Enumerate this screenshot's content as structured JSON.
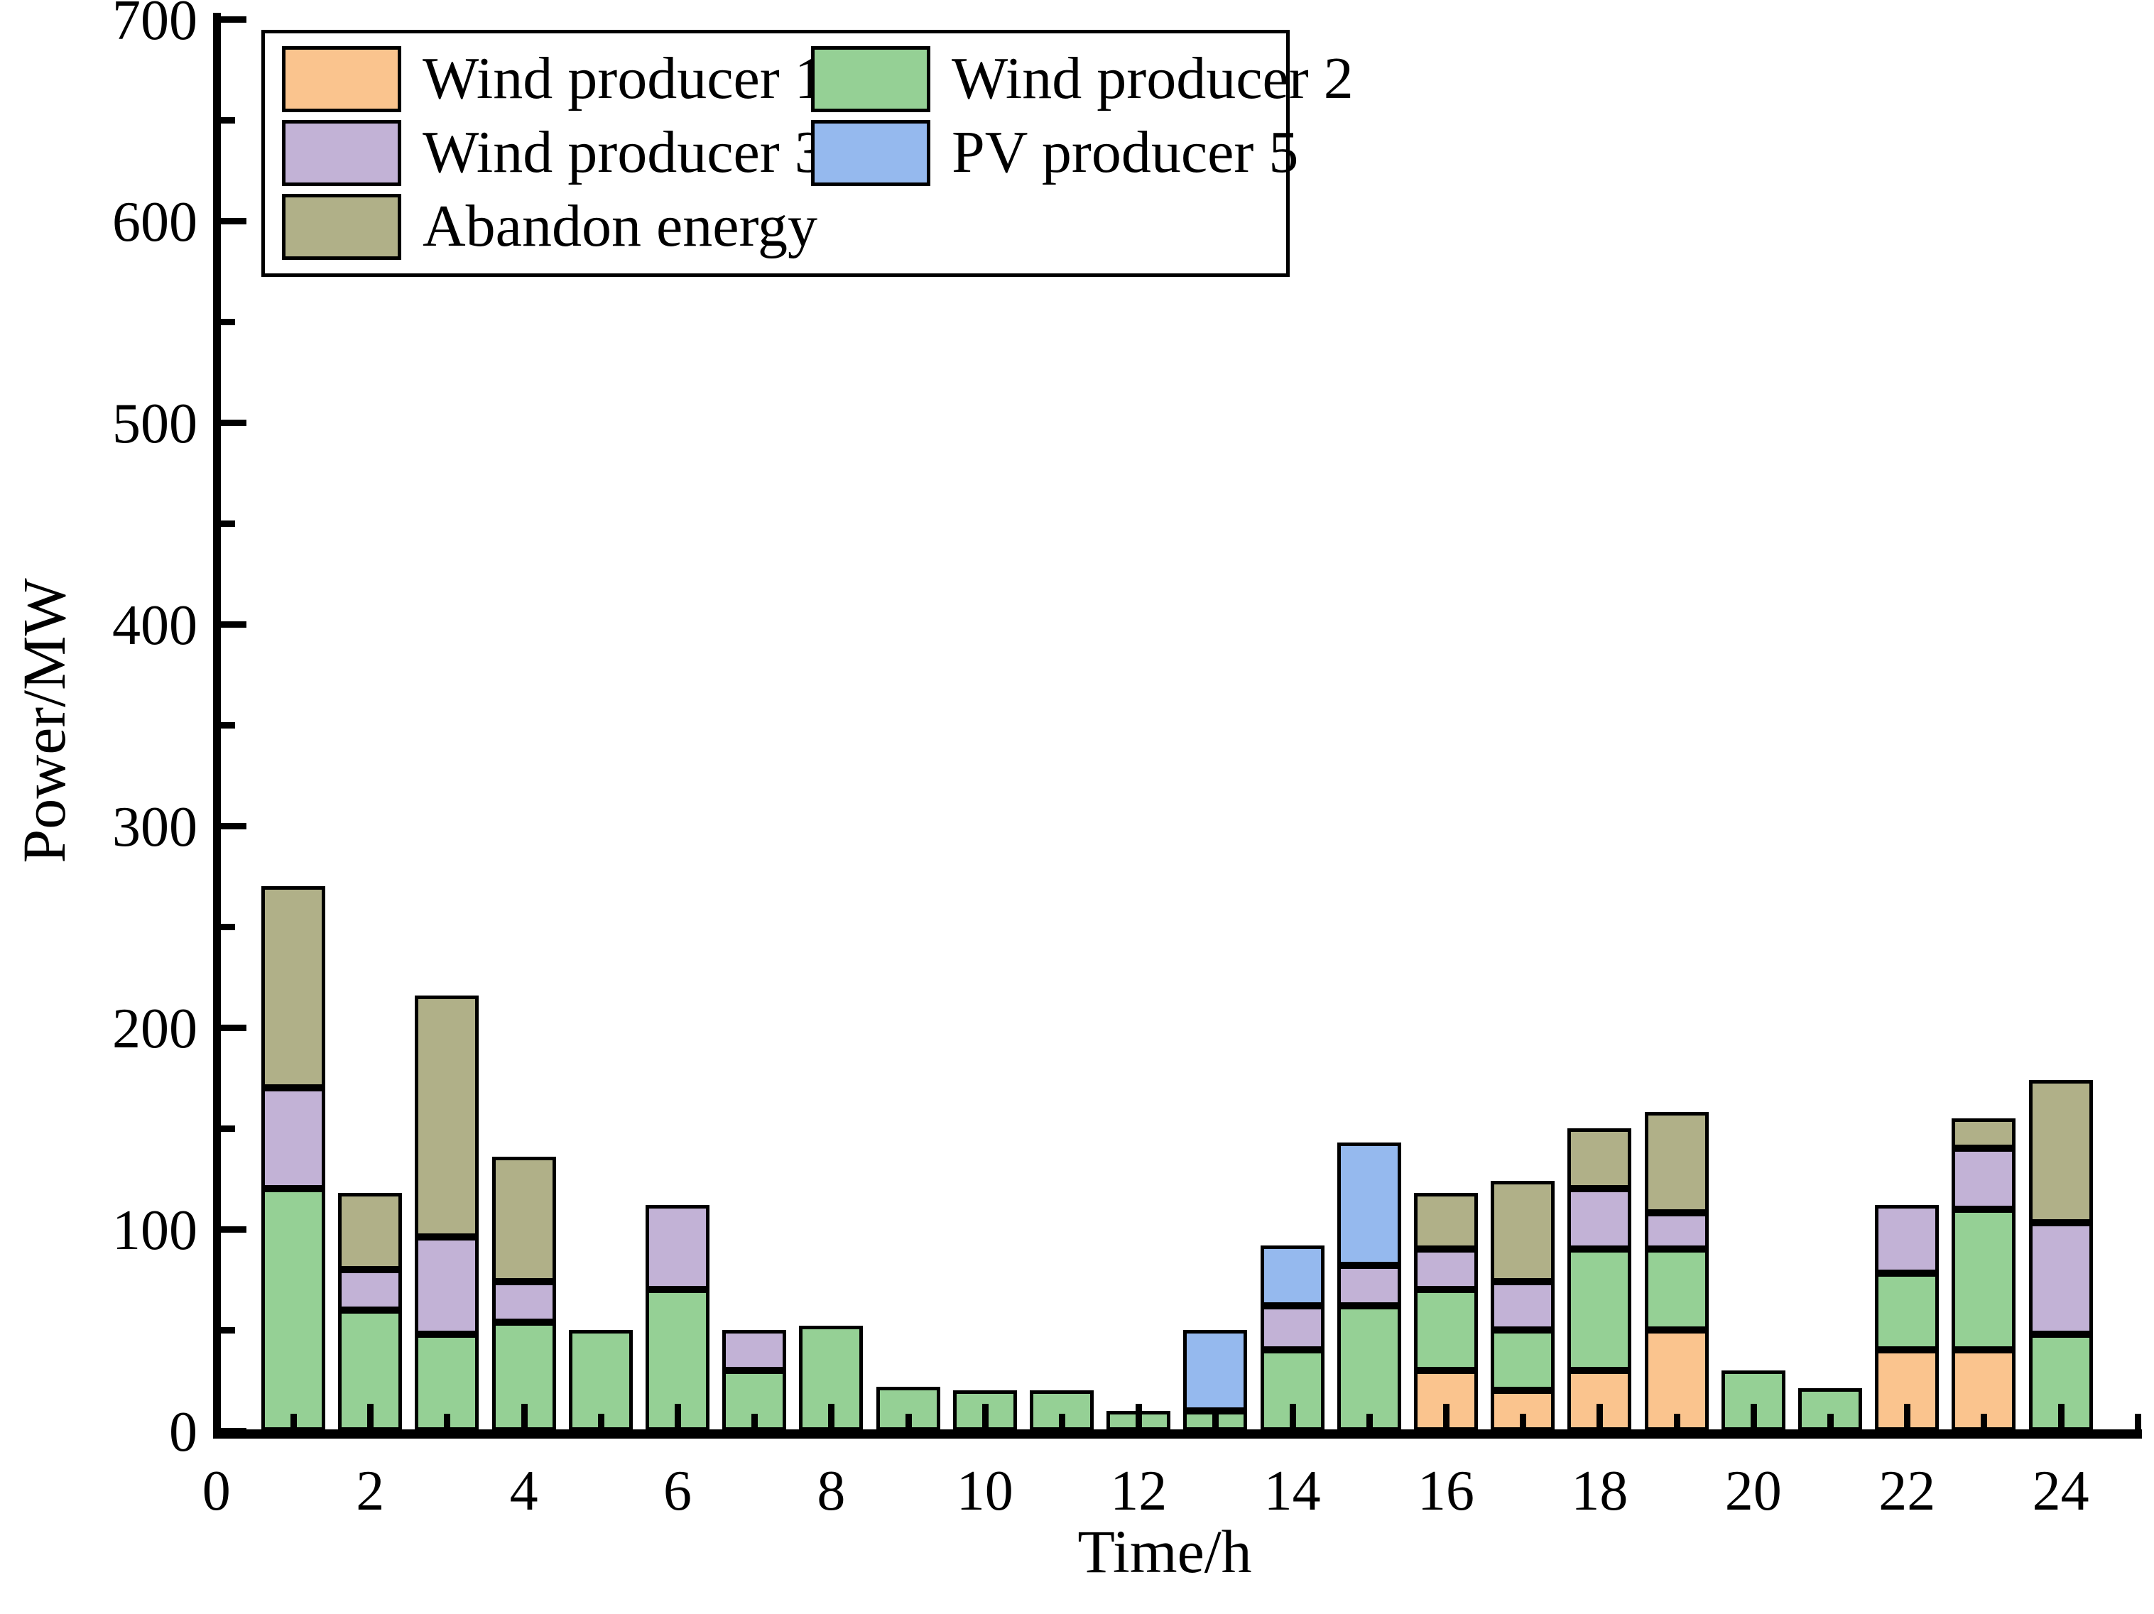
{
  "figure": {
    "background": "#ffffff",
    "border_color": "#000000"
  },
  "chart_data": {
    "type": "bar",
    "stacked": true,
    "title": "",
    "xlabel": "Time/h",
    "ylabel": "Power/MW",
    "x": [
      1,
      2,
      3,
      4,
      5,
      6,
      7,
      8,
      9,
      10,
      11,
      12,
      13,
      14,
      15,
      16,
      17,
      18,
      19,
      20,
      21,
      22,
      23,
      24
    ],
    "xlim": [
      0,
      25
    ],
    "ylim": [
      0,
      700
    ],
    "y_major_ticks": [
      0,
      100,
      200,
      300,
      400,
      500,
      600,
      700
    ],
    "y_minor_step": 50,
    "x_labeled_ticks": [
      0,
      2,
      4,
      6,
      8,
      10,
      12,
      14,
      16,
      18,
      20,
      22,
      24
    ],
    "grid": false,
    "legend_position": "upper-left",
    "series": [
      {
        "name": "Wind producer 1",
        "color": "#FAC48E",
        "values": [
          0,
          0,
          0,
          0,
          0,
          0,
          0,
          0,
          0,
          0,
          0,
          0,
          0,
          0,
          0,
          30,
          20,
          30,
          50,
          0,
          0,
          40,
          40,
          0
        ]
      },
      {
        "name": "Wind producer 2",
        "color": "#95D095",
        "values": [
          120,
          60,
          48,
          54,
          50,
          70,
          30,
          52,
          22,
          20,
          20,
          10,
          10,
          40,
          62,
          40,
          30,
          60,
          40,
          30,
          21,
          38,
          70,
          48
        ]
      },
      {
        "name": "Wind producer 3",
        "color": "#C2B2D6",
        "values": [
          50,
          20,
          48,
          20,
          0,
          42,
          20,
          0,
          0,
          0,
          0,
          0,
          0,
          22,
          20,
          20,
          24,
          30,
          18,
          0,
          0,
          34,
          30,
          55
        ]
      },
      {
        "name": "PV producer 5",
        "color": "#95B9EE",
        "values": [
          0,
          0,
          0,
          0,
          0,
          0,
          0,
          0,
          0,
          0,
          0,
          0,
          40,
          30,
          61,
          0,
          0,
          0,
          0,
          0,
          0,
          0,
          0,
          0
        ]
      },
      {
        "name": "Abandon energy",
        "color": "#B0B088",
        "values": [
          100,
          38,
          120,
          62,
          0,
          0,
          0,
          0,
          0,
          0,
          0,
          0,
          0,
          0,
          0,
          28,
          50,
          30,
          50,
          0,
          0,
          0,
          15,
          71
        ]
      }
    ]
  }
}
